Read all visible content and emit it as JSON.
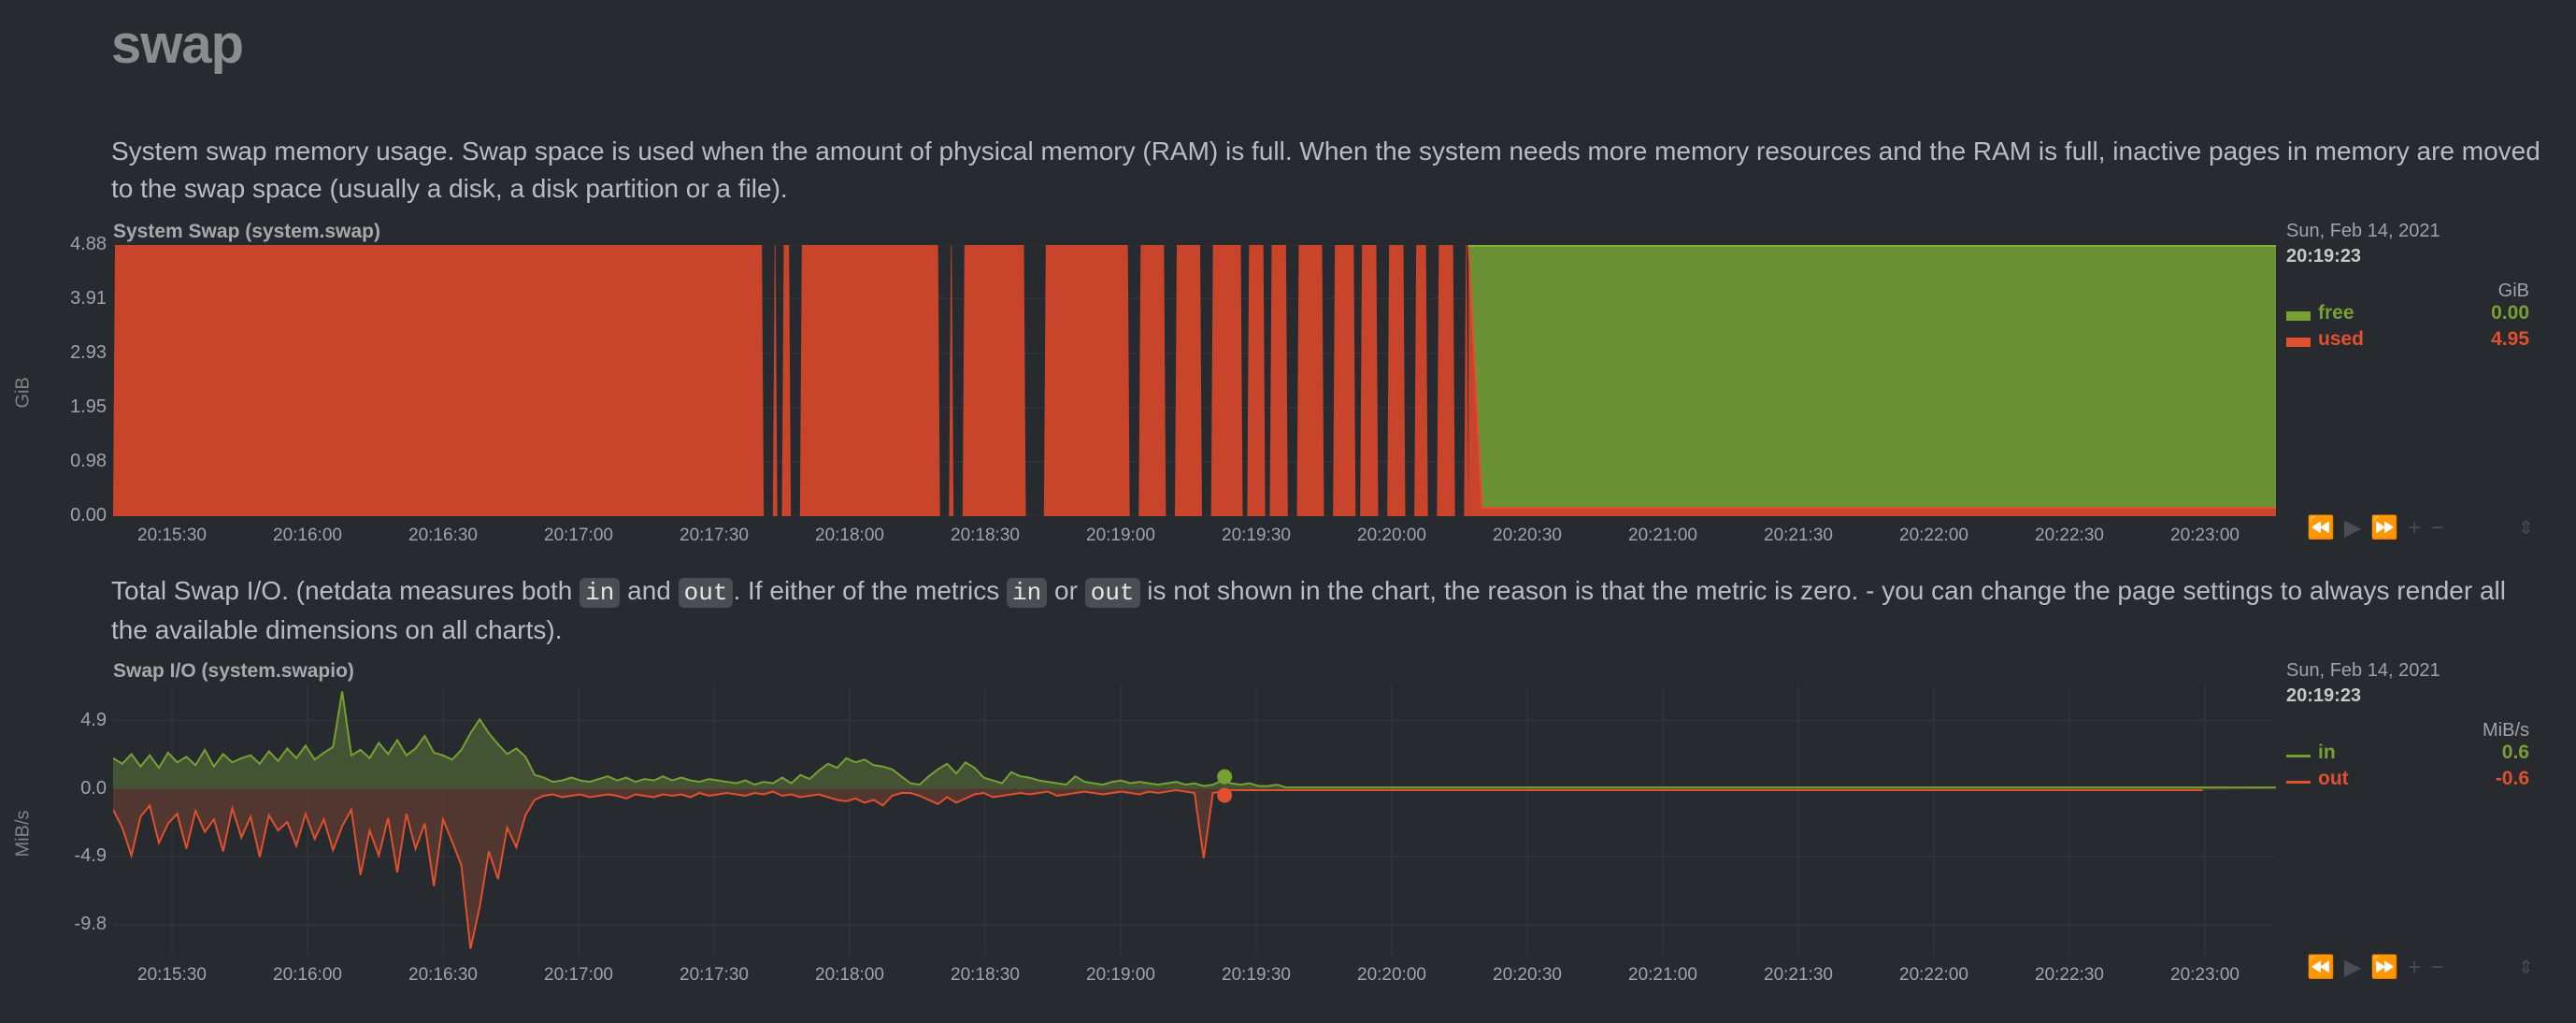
{
  "page": {
    "title": "swap"
  },
  "swap_chart": {
    "description": "System swap memory usage. Swap space is used when the amount of physical memory (RAM) is full. When the system needs more memory resources and the RAM is full, inactive pages in memory are moved to the swap space (usually a disk, a disk partition or a file).",
    "title": "System Swap (system.swap)",
    "unit_axis": "GiB",
    "legend": {
      "date": "Sun, Feb 14, 2021",
      "time": "20:19:23",
      "unit": "GiB",
      "series": [
        {
          "name": "free",
          "value": "0.00",
          "color": "#77a033"
        },
        {
          "name": "used",
          "value": "4.95",
          "color": "#e0502e"
        }
      ]
    }
  },
  "swapio_chart": {
    "description_parts": [
      "Total Swap I/O. (netdata measures both ",
      "in",
      " and ",
      "out",
      ". If either of the metrics ",
      "in",
      " or ",
      "out",
      " is not shown in the chart, the reason is that the metric is zero. - you can change the page settings to always render all the available dimensions on all charts)."
    ],
    "title": "Swap I/O (system.swapio)",
    "unit_axis": "MiB/s",
    "legend": {
      "date": "Sun, Feb 14, 2021",
      "time": "20:19:23",
      "unit": "MiB/s",
      "series": [
        {
          "name": "in",
          "value": "0.6",
          "color": "#77a033"
        },
        {
          "name": "out",
          "value": "-0.6",
          "color": "#e0502e"
        }
      ]
    }
  },
  "chart_data": [
    {
      "type": "area",
      "title": "System Swap (system.swap)",
      "ylabel": "GiB",
      "yticks": [
        "4.88",
        "3.91",
        "2.93",
        "1.95",
        "0.98",
        "0.00"
      ],
      "ylim": [
        0,
        4.88
      ],
      "xticks": [
        "20:15:30",
        "20:16:00",
        "20:16:30",
        "20:17:00",
        "20:17:30",
        "20:18:00",
        "20:18:30",
        "20:19:00",
        "20:19:30",
        "20:20:00",
        "20:20:30",
        "20:21:00",
        "20:21:30",
        "20:22:00",
        "20:22:30",
        "20:23:00"
      ],
      "series": [
        {
          "name": "used",
          "note": "stacked bottom",
          "values_start": 4.95,
          "values_end": 0.15
        },
        {
          "name": "free",
          "values_start": 0.0,
          "values_end": 4.73
        }
      ],
      "gaps": [
        [
          "20:17:41",
          "20:17:43"
        ],
        [
          "20:17:44",
          "20:17:45"
        ],
        [
          "20:17:47",
          "20:17:49"
        ],
        [
          "20:18:20",
          "20:18:22"
        ],
        [
          "20:18:23",
          "20:18:25"
        ],
        [
          "20:18:39",
          "20:18:43"
        ],
        [
          "20:19:02",
          "20:19:04"
        ],
        [
          "20:19:10",
          "20:19:12"
        ],
        [
          "20:19:18",
          "20:19:20"
        ],
        [
          "20:19:27",
          "20:19:28"
        ],
        [
          "20:19:32",
          "20:19:33"
        ],
        [
          "20:19:37",
          "20:19:39"
        ],
        [
          "20:19:45",
          "20:19:47"
        ],
        [
          "20:19:52",
          "20:19:53"
        ],
        [
          "20:19:57",
          "20:19:59"
        ],
        [
          "20:20:03",
          "20:20:05"
        ],
        [
          "20:20:08",
          "20:20:10"
        ],
        [
          "20:20:14",
          "20:20:16"
        ]
      ],
      "transition_time": "20:20:17"
    },
    {
      "type": "area",
      "title": "Swap I/O (system.swapio)",
      "ylabel": "MiB/s",
      "yticks": [
        "4.9",
        "0.0",
        "-4.9",
        "-9.8"
      ],
      "ylim": [
        -12.0,
        7.5
      ],
      "xticks": [
        "20:15:30",
        "20:16:00",
        "20:16:30",
        "20:17:00",
        "20:17:30",
        "20:18:00",
        "20:18:30",
        "20:19:00",
        "20:19:30",
        "20:20:00",
        "20:20:30",
        "20:21:00",
        "20:21:30",
        "20:22:00",
        "20:22:30",
        "20:23:00"
      ],
      "series": [
        {
          "name": "in",
          "values": [
            2.2,
            1.8,
            2.5,
            1.6,
            2.4,
            1.5,
            2.6,
            1.9,
            2.3,
            1.7,
            2.8,
            1.6,
            2.5,
            1.9,
            2.2,
            2.4,
            1.8,
            2.7,
            2.0,
            2.9,
            2.2,
            3.1,
            2.1,
            2.6,
            3.0,
            7.0,
            2.4,
            2.8,
            2.2,
            3.3,
            2.5,
            3.5,
            2.4,
            2.9,
            3.8,
            2.6,
            2.4,
            2.1,
            2.8,
            4.0,
            5.0,
            4.0,
            3.2,
            2.5,
            2.9,
            2.3,
            1.0,
            0.8,
            0.5,
            0.6,
            0.8,
            0.6,
            0.5,
            0.7,
            0.9,
            0.6,
            0.8,
            0.5,
            0.7,
            0.6,
            0.9,
            0.6,
            0.8,
            0.6,
            0.5,
            0.7,
            0.6,
            0.5,
            0.4,
            0.6,
            0.3,
            0.5,
            0.4,
            0.8,
            0.4,
            1.0,
            0.7,
            1.3,
            1.8,
            1.5,
            2.2,
            1.9,
            2.1,
            1.7,
            1.6,
            1.4,
            0.9,
            0.4,
            0.3,
            0.9,
            1.4,
            1.8,
            1.1,
            1.9,
            1.5,
            0.8,
            0.6,
            0.4,
            1.2,
            0.9,
            0.8,
            0.6,
            0.5,
            0.4,
            0.3,
            0.9,
            0.5,
            0.4,
            0.3,
            0.5,
            0.6,
            0.4,
            0.5,
            0.4,
            0.3,
            0.4,
            0.5,
            0.3,
            0.4,
            0.2,
            0.3,
            0.6,
            0.4,
            0.3,
            0.4,
            0.2,
            0.2,
            0.3,
            0.1,
            0.1,
            0.1,
            0.1,
            0.1,
            0.1,
            0.1,
            0.1,
            0.1,
            0.1,
            0.1,
            0.1,
            0.1,
            0.1,
            0.1,
            0.1,
            0.1,
            0.1,
            0.1,
            0.1,
            0.1,
            0.1,
            0.1,
            0.1,
            0.1,
            0.1,
            0.1,
            0.1,
            0.1,
            0.1,
            0.1,
            0.1,
            0.1,
            0.1,
            0.1,
            0.1,
            0.1,
            0.1,
            0.1,
            0.1,
            0.1,
            0.1,
            0.1,
            0.1,
            0.1,
            0.1,
            0.1,
            0.1,
            0.1,
            0.1,
            0.1,
            0.1,
            0.1,
            0.1,
            0.1,
            0.1,
            0.1,
            0.1,
            0.1,
            0.1,
            0.1,
            0.1,
            0.1,
            0.1,
            0.1,
            0.1,
            0.1,
            0.1,
            0.1,
            0.1,
            0.1,
            0.1,
            0.1,
            0.1,
            0.1,
            0.1,
            0.1,
            0.1,
            0.1,
            0.1,
            0.1,
            0.1,
            0.1,
            0.1,
            0.1,
            0.1,
            0.1,
            0.1,
            0.1,
            0.1,
            0.1,
            0.1,
            0.1,
            0.1,
            0.1,
            0.1,
            0.1,
            0.1,
            0.1,
            0.1,
            0.1,
            0.1,
            0.1,
            0.1,
            0.1,
            0.1,
            0.1,
            0.1,
            0.1
          ]
        },
        {
          "name": "out",
          "values": [
            -1.5,
            -2.8,
            -4.8,
            -2.0,
            -1.2,
            -3.9,
            -2.5,
            -1.8,
            -4.3,
            -1.6,
            -3.1,
            -2.2,
            -4.5,
            -1.4,
            -3.5,
            -2.0,
            -4.9,
            -1.9,
            -3.0,
            -2.4,
            -4.1,
            -1.8,
            -3.6,
            -2.2,
            -4.4,
            -2.7,
            -1.5,
            -6.2,
            -3.0,
            -4.8,
            -2.1,
            -6.0,
            -1.8,
            -4.3,
            -2.5,
            -7.0,
            -2.2,
            -3.8,
            -5.5,
            -11.5,
            -8.5,
            -4.5,
            -6.5,
            -2.8,
            -4.2,
            -1.9,
            -0.8,
            -0.5,
            -0.4,
            -0.6,
            -0.5,
            -0.4,
            -0.6,
            -0.5,
            -0.4,
            -0.5,
            -0.7,
            -0.4,
            -0.5,
            -0.6,
            -0.4,
            -0.5,
            -0.4,
            -0.6,
            -0.3,
            -0.5,
            -0.4,
            -0.3,
            -0.4,
            -0.5,
            -0.3,
            -0.4,
            -0.2,
            -0.5,
            -0.4,
            -0.6,
            -0.5,
            -0.4,
            -0.6,
            -0.8,
            -0.9,
            -0.7,
            -1.0,
            -0.8,
            -1.2,
            -0.5,
            -0.3,
            -0.3,
            -0.5,
            -0.8,
            -1.1,
            -0.6,
            -1.0,
            -0.7,
            -0.4,
            -0.3,
            -0.6,
            -0.5,
            -0.4,
            -0.3,
            -0.4,
            -0.3,
            -0.2,
            -0.5,
            -0.4,
            -0.3,
            -0.2,
            -0.3,
            -0.4,
            -0.3,
            -0.2,
            -0.3,
            -0.4,
            -0.2,
            -0.3,
            -0.2,
            -0.1,
            -0.2,
            -0.3,
            -5.0,
            -0.3,
            -0.2,
            -0.1,
            -0.1,
            -0.1,
            -0.1,
            -0.1,
            -0.1,
            -0.1,
            -0.1,
            -0.1,
            -0.1,
            -0.1,
            -0.1,
            -0.1,
            -0.1,
            -0.1,
            -0.1,
            -0.1,
            -0.1,
            -0.1,
            -0.1,
            -0.1,
            -0.1,
            -0.1,
            -0.1,
            -0.1,
            -0.1,
            -0.1,
            -0.1,
            -0.1,
            -0.1,
            -0.1,
            -0.1,
            -0.1,
            -0.1,
            -0.1,
            -0.1,
            -0.1,
            -0.1,
            -0.1,
            -0.1,
            -0.1,
            -0.1,
            -0.1,
            -0.1,
            -0.1,
            -0.1,
            -0.1,
            -0.1,
            -0.1,
            -0.1,
            -0.1,
            -0.1,
            -0.1,
            -0.1,
            -0.1,
            -0.1,
            -0.1,
            -0.1,
            -0.1,
            -0.1,
            -0.1,
            -0.1,
            -0.1,
            -0.1,
            -0.1,
            -0.1,
            -0.1,
            -0.1,
            -0.1,
            -0.1,
            -0.1,
            -0.1,
            -0.1,
            -0.1,
            -0.1,
            -0.1,
            -0.1,
            -0.1,
            -0.1,
            -0.1,
            -0.1,
            -0.1,
            -0.1,
            -0.1,
            -0.1,
            -0.1,
            -0.1,
            -0.1,
            -0.1,
            -0.1,
            -0.1,
            -0.1,
            -0.1,
            -0.1,
            -0.1,
            -0.1,
            -0.1,
            -0.1,
            -0.1,
            -0.1,
            -0.1,
            -0.1,
            -0.1,
            -0.1,
            -0.1,
            -0.1,
            -0.1
          ]
        }
      ]
    }
  ],
  "controls": {
    "back_icon": "⏪",
    "play_icon": "▶",
    "forward_icon": "⏩",
    "zoom_in_icon": "+",
    "zoom_out_icon": "−",
    "resize_icon": "⇕"
  }
}
